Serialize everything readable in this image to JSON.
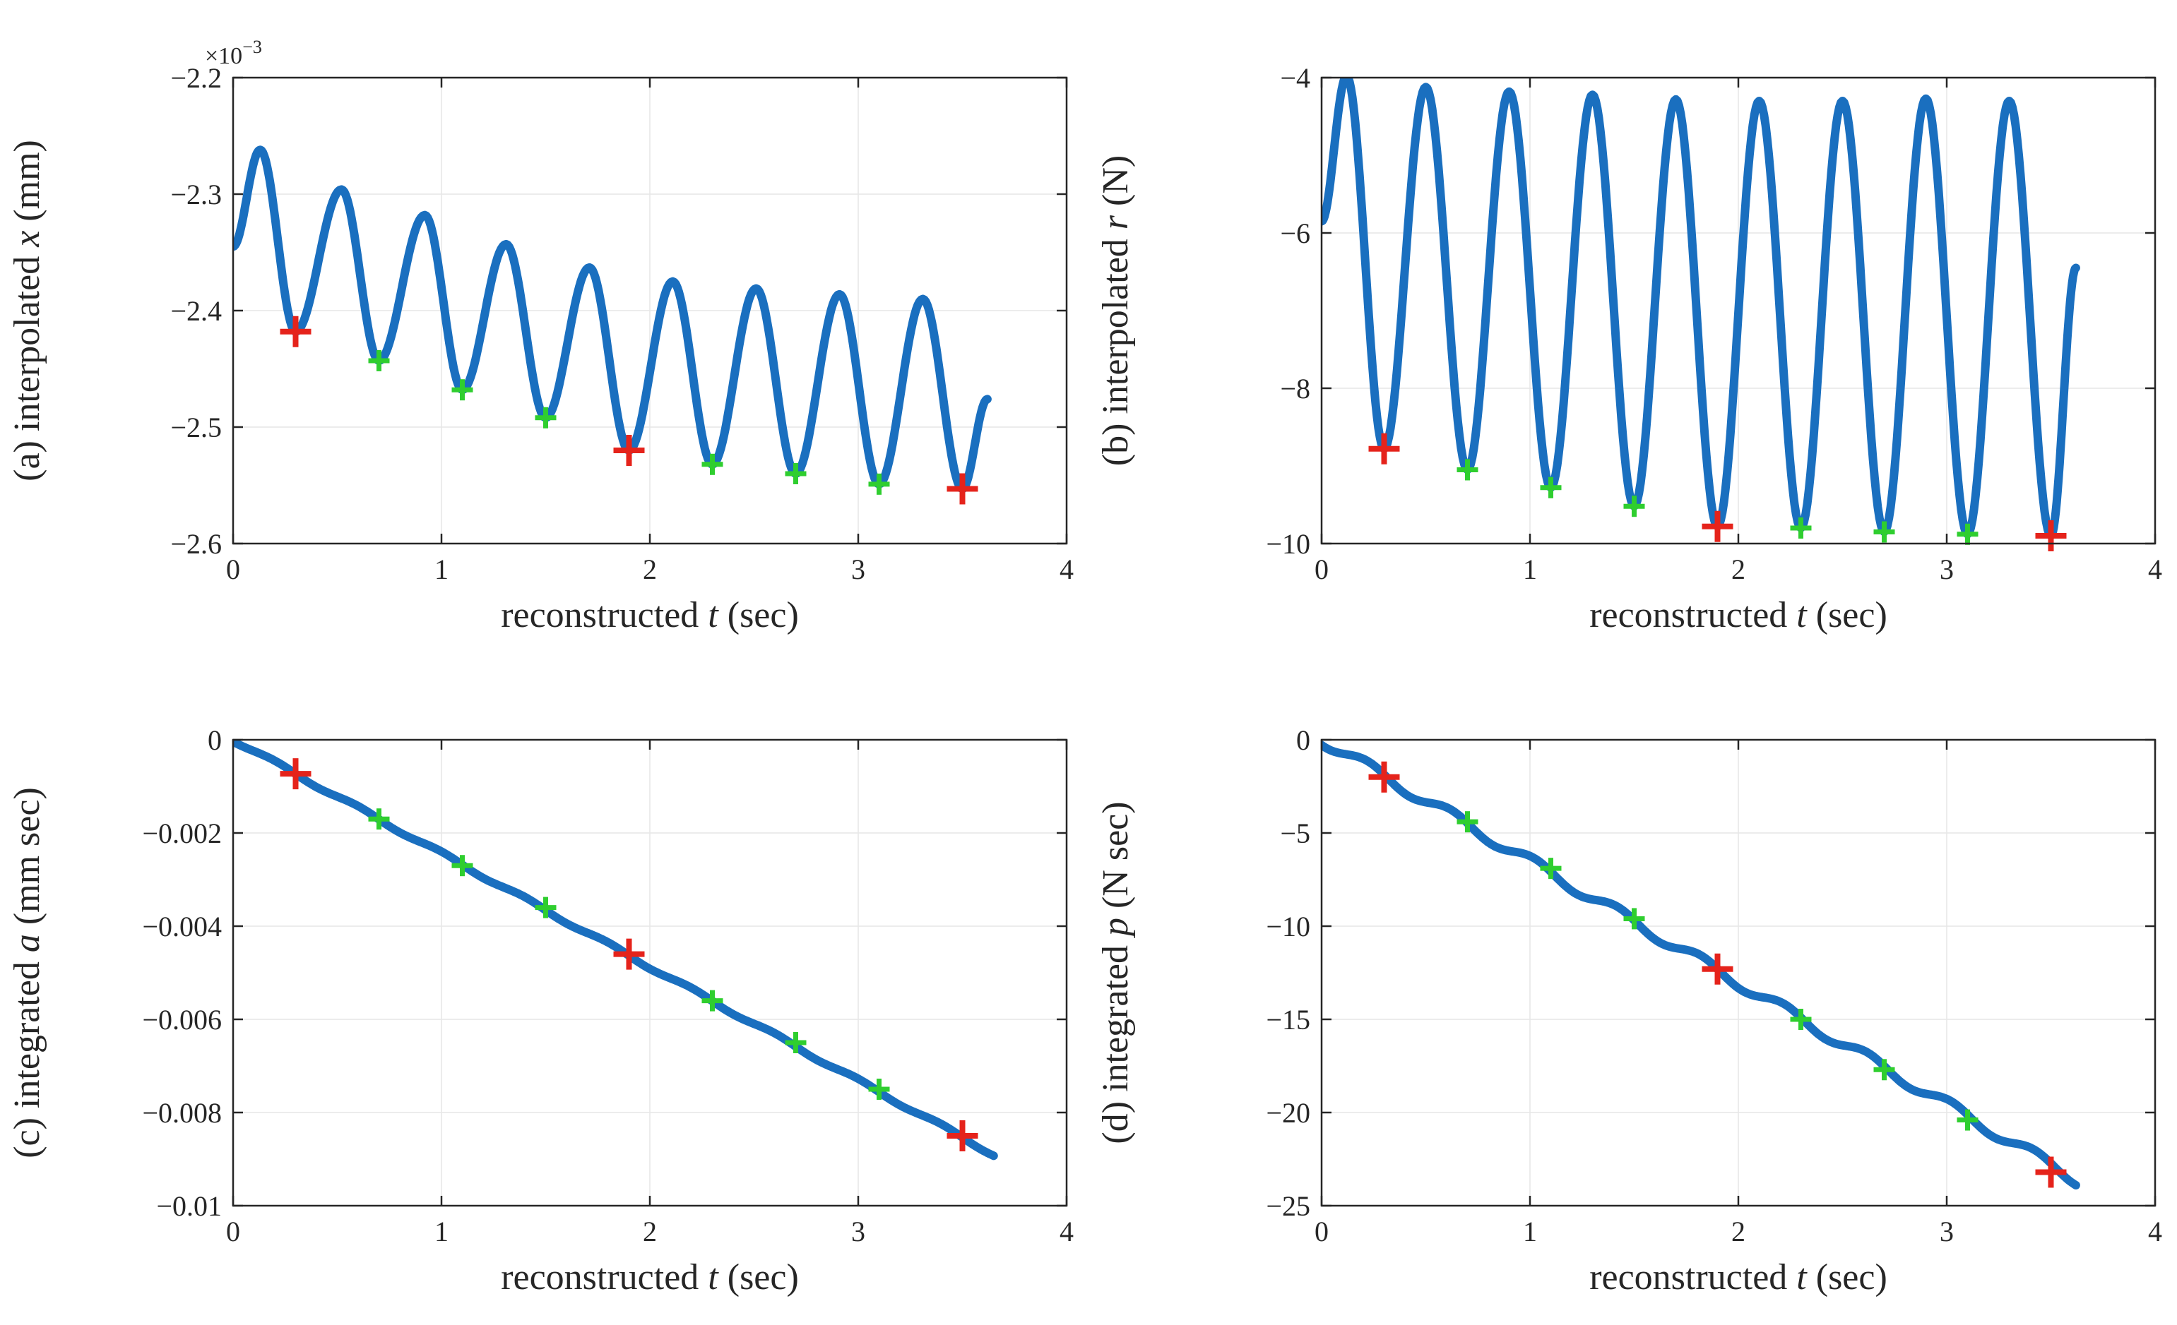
{
  "page": {
    "background": "#ffffff",
    "kind": "matlab-figure-2x2"
  },
  "style": {
    "line_color": "#1a6fbf",
    "red_marker_color": "#e5231b",
    "green_marker_color": "#2fce2f",
    "axis_color": "#262626",
    "grid_color": "#e6e6e6",
    "tick_label_color": "#262626"
  },
  "chart_data": [
    {
      "id": "a",
      "type": "line",
      "panel_label": "(a)",
      "title": "",
      "xlabel_text": "reconstructed t (sec)",
      "ylabel_text": "(a) interpolated x (mm)",
      "xlabel_parts": [
        {
          "text": "reconstructed ",
          "italic": false
        },
        {
          "text": "t",
          "italic": true
        },
        {
          "text": " (sec)",
          "italic": false
        }
      ],
      "ylabel_parts": [
        {
          "text": "(a) interpolated ",
          "italic": false
        },
        {
          "text": "x",
          "italic": true
        },
        {
          "text": " (mm)",
          "italic": false
        }
      ],
      "xlim": [
        0,
        4
      ],
      "ylim": [
        -2.6,
        -2.2
      ],
      "y_exponent": {
        "base": "×10",
        "sup": "−3"
      },
      "xticks": {
        "values": [
          0,
          1,
          2,
          3,
          4
        ],
        "labels": [
          "0",
          "1",
          "2",
          "3",
          "4"
        ]
      },
      "yticks": {
        "values": [
          -2.6,
          -2.5,
          -2.4,
          -2.3,
          -2.2
        ],
        "labels": [
          "−2.6",
          "−2.5",
          "−2.4",
          "−2.3",
          "−2.2"
        ]
      },
      "grid": true,
      "series": {
        "kind": "oscillation-extrema",
        "name": "interpolated x (units of 1e-3 mm)",
        "extrema": [
          [
            0,
            -2.345
          ],
          [
            0.13,
            -2.262
          ],
          [
            0.3,
            -2.418
          ],
          [
            0.52,
            -2.296
          ],
          [
            0.7,
            -2.443
          ],
          [
            0.92,
            -2.318
          ],
          [
            1.1,
            -2.468
          ],
          [
            1.31,
            -2.343
          ],
          [
            1.5,
            -2.492
          ],
          [
            1.71,
            -2.363
          ],
          [
            1.9,
            -2.52
          ],
          [
            2.11,
            -2.375
          ],
          [
            2.3,
            -2.532
          ],
          [
            2.51,
            -2.381
          ],
          [
            2.7,
            -2.54
          ],
          [
            2.91,
            -2.386
          ],
          [
            3.1,
            -2.549
          ],
          [
            3.31,
            -2.39
          ],
          [
            3.5,
            -2.553
          ],
          [
            3.62,
            -2.476
          ]
        ]
      },
      "markers": {
        "red": [
          [
            0.3,
            -2.418
          ],
          [
            1.9,
            -2.52
          ],
          [
            3.5,
            -2.553
          ]
        ],
        "green": [
          [
            0.7,
            -2.443
          ],
          [
            1.1,
            -2.468
          ],
          [
            1.5,
            -2.492
          ],
          [
            2.3,
            -2.532
          ],
          [
            2.7,
            -2.54
          ],
          [
            3.1,
            -2.549
          ]
        ]
      }
    },
    {
      "id": "b",
      "type": "line",
      "panel_label": "(b)",
      "title": "",
      "xlabel_text": "reconstructed t (sec)",
      "ylabel_text": "(b) interpolated r (N)",
      "xlabel_parts": [
        {
          "text": "reconstructed ",
          "italic": false
        },
        {
          "text": "t",
          "italic": true
        },
        {
          "text": " (sec)",
          "italic": false
        }
      ],
      "ylabel_parts": [
        {
          "text": "(b) interpolated ",
          "italic": false
        },
        {
          "text": "r",
          "italic": true
        },
        {
          "text": " (N)",
          "italic": false
        }
      ],
      "xlim": [
        0,
        4
      ],
      "ylim": [
        -10,
        -4
      ],
      "y_exponent": null,
      "xticks": {
        "values": [
          0,
          1,
          2,
          3,
          4
        ],
        "labels": [
          "0",
          "1",
          "2",
          "3",
          "4"
        ]
      },
      "yticks": {
        "values": [
          -10,
          -8,
          -6,
          -4
        ],
        "labels": [
          "−10",
          "−8",
          "−6",
          "−4"
        ]
      },
      "grid": true,
      "series": {
        "kind": "oscillation-extrema",
        "name": "interpolated r (N)",
        "extrema": [
          [
            0,
            -5.85
          ],
          [
            0.12,
            -3.98
          ],
          [
            0.3,
            -8.78
          ],
          [
            0.5,
            -4.12
          ],
          [
            0.7,
            -9.05
          ],
          [
            0.9,
            -4.18
          ],
          [
            1.1,
            -9.28
          ],
          [
            1.3,
            -4.22
          ],
          [
            1.5,
            -9.52
          ],
          [
            1.7,
            -4.28
          ],
          [
            1.9,
            -9.78
          ],
          [
            2.1,
            -4.3
          ],
          [
            2.3,
            -9.8
          ],
          [
            2.5,
            -4.3
          ],
          [
            2.7,
            -9.85
          ],
          [
            2.9,
            -4.27
          ],
          [
            3.1,
            -9.88
          ],
          [
            3.3,
            -4.3
          ],
          [
            3.5,
            -9.9
          ],
          [
            3.62,
            -6.45
          ]
        ]
      },
      "markers": {
        "red": [
          [
            0.3,
            -8.78
          ],
          [
            1.9,
            -9.78
          ],
          [
            3.5,
            -9.9
          ]
        ],
        "green": [
          [
            0.7,
            -9.05
          ],
          [
            1.1,
            -9.28
          ],
          [
            1.5,
            -9.52
          ],
          [
            2.3,
            -9.8
          ],
          [
            2.7,
            -9.85
          ],
          [
            3.1,
            -9.88
          ]
        ]
      }
    },
    {
      "id": "c",
      "type": "line",
      "panel_label": "(c)",
      "title": "",
      "xlabel_text": "reconstructed t (sec)",
      "ylabel_text": "(c) integrated a (mm sec)",
      "xlabel_parts": [
        {
          "text": "reconstructed ",
          "italic": false
        },
        {
          "text": "t",
          "italic": true
        },
        {
          "text": " (sec)",
          "italic": false
        }
      ],
      "ylabel_parts": [
        {
          "text": "(c) integrated ",
          "italic": false
        },
        {
          "text": "a",
          "italic": true
        },
        {
          "text": " (mm sec)",
          "italic": false
        }
      ],
      "xlim": [
        0,
        4
      ],
      "ylim": [
        -0.01,
        0
      ],
      "y_exponent": null,
      "xticks": {
        "values": [
          0,
          1,
          2,
          3,
          4
        ],
        "labels": [
          "0",
          "1",
          "2",
          "3",
          "4"
        ]
      },
      "yticks": {
        "values": [
          0,
          -0.002,
          -0.004,
          -0.006,
          -0.008,
          -0.01
        ],
        "labels": [
          "0",
          "−0.002",
          "−0.004",
          "−0.006",
          "−0.008",
          "−0.01"
        ]
      },
      "grid": true,
      "series": {
        "kind": "trend",
        "name": "integrated a (mm sec)",
        "t_range": [
          0,
          3.65
        ],
        "y_range": [
          0,
          -0.0089
        ],
        "ripple_amp": 4e-05,
        "ripple_period": 0.4,
        "ripple_phase": 0.1
      },
      "markers": {
        "red": [
          [
            0.3,
            -0.00073
          ],
          [
            1.9,
            -0.0046
          ],
          [
            3.5,
            -0.0085
          ]
        ],
        "green": [
          [
            0.7,
            -0.0017
          ],
          [
            1.1,
            -0.0027
          ],
          [
            1.5,
            -0.0036
          ],
          [
            2.3,
            -0.0056
          ],
          [
            2.7,
            -0.0065
          ],
          [
            3.1,
            -0.0075
          ]
        ]
      }
    },
    {
      "id": "d",
      "type": "line",
      "panel_label": "(d)",
      "title": "",
      "xlabel_text": "reconstructed t (sec)",
      "ylabel_text": "(d) integrated p (N sec)",
      "xlabel_parts": [
        {
          "text": "reconstructed ",
          "italic": false
        },
        {
          "text": "t",
          "italic": true
        },
        {
          "text": " (sec)",
          "italic": false
        }
      ],
      "ylabel_parts": [
        {
          "text": "(d) integrated ",
          "italic": false
        },
        {
          "text": "p",
          "italic": true
        },
        {
          "text": " (N sec)",
          "italic": false
        }
      ],
      "xlim": [
        0,
        4
      ],
      "ylim": [
        -25,
        0
      ],
      "y_exponent": null,
      "xticks": {
        "values": [
          0,
          1,
          2,
          3,
          4
        ],
        "labels": [
          "0",
          "1",
          "2",
          "3",
          "4"
        ]
      },
      "yticks": {
        "values": [
          0,
          -5,
          -10,
          -15,
          -20,
          -25
        ],
        "labels": [
          "0",
          "−5",
          "−10",
          "−15",
          "−20",
          "−25"
        ]
      },
      "grid": true,
      "series": {
        "kind": "trend",
        "name": "integrated p (N sec)",
        "t_range": [
          0,
          3.62
        ],
        "y_range": [
          0,
          -23.6
        ],
        "ripple_amp": 0.3,
        "ripple_period": 0.4,
        "ripple_phase": 0.12
      },
      "markers": {
        "red": [
          [
            0.3,
            -2.0
          ],
          [
            1.9,
            -12.3
          ],
          [
            3.5,
            -23.2
          ]
        ],
        "green": [
          [
            0.7,
            -4.4
          ],
          [
            1.1,
            -6.9
          ],
          [
            1.5,
            -9.6
          ],
          [
            2.3,
            -15.0
          ],
          [
            2.7,
            -17.7
          ],
          [
            3.1,
            -20.4
          ]
        ]
      }
    }
  ]
}
